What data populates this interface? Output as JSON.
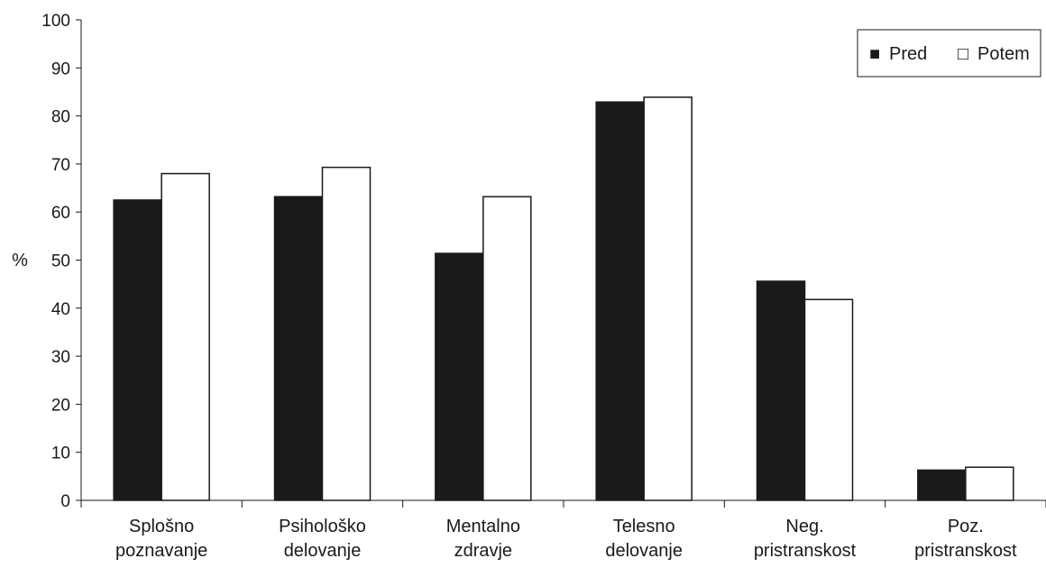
{
  "chart_data": {
    "type": "bar",
    "title": "",
    "xlabel": "",
    "ylabel": "%",
    "ylim": [
      0,
      100
    ],
    "yticks": [
      0,
      10,
      20,
      30,
      40,
      50,
      60,
      70,
      80,
      90,
      100
    ],
    "grid": false,
    "legend_position": "top-right",
    "categories": [
      [
        "Splošno",
        "poznavanje"
      ],
      [
        "Psihološko",
        "delovanje"
      ],
      [
        "Mentalno",
        "zdravje"
      ],
      [
        "Telesno",
        "delovanje"
      ],
      [
        "Neg.",
        "pristranskost"
      ],
      [
        "Poz.",
        "pristranskost"
      ]
    ],
    "series": [
      {
        "name": "Pred",
        "values": [
          62.5,
          63.2,
          51.4,
          82.9,
          45.6,
          6.3
        ],
        "color": "#1a1a1a"
      },
      {
        "name": "Potem",
        "values": [
          68.0,
          69.3,
          63.2,
          83.9,
          41.8,
          6.9
        ],
        "color": "#ffffff"
      }
    ],
    "legend_markers": [
      "■",
      "□"
    ]
  }
}
